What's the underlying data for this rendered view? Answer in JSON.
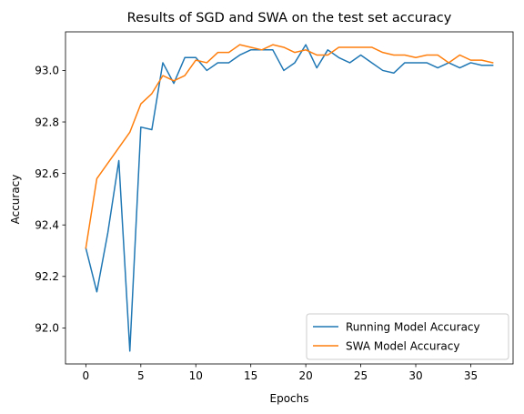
{
  "chart_data": {
    "type": "line",
    "title": "Results of SGD and SWA on the test set accuracy",
    "xlabel": "Epochs",
    "ylabel": "Accuracy",
    "xlim": [
      -1.85,
      38.85
    ],
    "ylim": [
      91.86,
      93.15
    ],
    "xticks": [
      0,
      5,
      10,
      15,
      20,
      25,
      30,
      35
    ],
    "yticks": [
      92.0,
      92.2,
      92.4,
      92.6,
      92.8,
      93.0
    ],
    "ytick_labels": [
      "92.0",
      "92.2",
      "92.4",
      "92.6",
      "92.8",
      "93.0"
    ],
    "grid": false,
    "legend_position": "lower-right",
    "x": [
      0,
      1,
      2,
      3,
      4,
      5,
      6,
      7,
      8,
      9,
      10,
      11,
      12,
      13,
      14,
      15,
      16,
      17,
      18,
      19,
      20,
      21,
      22,
      23,
      24,
      25,
      26,
      27,
      28,
      29,
      30,
      31,
      32,
      33,
      34,
      35,
      36,
      37
    ],
    "series": [
      {
        "name": "Running Model Accuracy",
        "color": "#1f77b4",
        "values": [
          92.31,
          92.14,
          92.37,
          92.65,
          91.91,
          92.78,
          92.77,
          93.03,
          92.95,
          93.05,
          93.05,
          93.0,
          93.03,
          93.03,
          93.06,
          93.08,
          93.08,
          93.08,
          93.0,
          93.03,
          93.1,
          93.01,
          93.08,
          93.05,
          93.03,
          93.06,
          93.03,
          93.0,
          92.99,
          93.03,
          93.03,
          93.03,
          93.01,
          93.03,
          93.01,
          93.03,
          93.02,
          93.02
        ]
      },
      {
        "name": "SWA Model Accuracy",
        "color": "#ff7f0e",
        "values": [
          92.31,
          92.58,
          92.64,
          92.7,
          92.76,
          92.87,
          92.91,
          92.98,
          92.96,
          92.98,
          93.04,
          93.03,
          93.07,
          93.07,
          93.1,
          93.09,
          93.08,
          93.1,
          93.09,
          93.07,
          93.08,
          93.06,
          93.06,
          93.09,
          93.09,
          93.09,
          93.09,
          93.07,
          93.06,
          93.06,
          93.05,
          93.06,
          93.06,
          93.03,
          93.06,
          93.04,
          93.04,
          93.03
        ]
      }
    ]
  }
}
